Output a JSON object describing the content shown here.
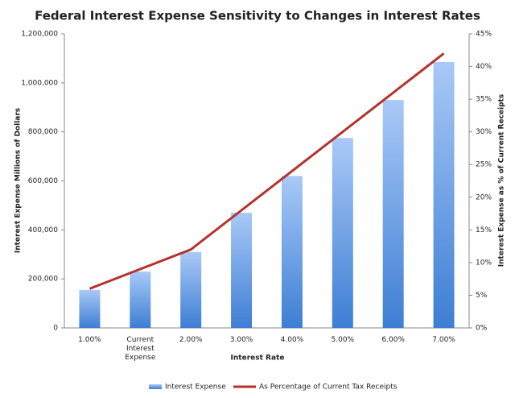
{
  "chart_data": {
    "type": "bar",
    "title": "Federal Interest Expense Sensitivity to Changes in Interest Rates",
    "x_label": "Interest Rate",
    "y_label": "Interest Expense Millions of Dollars",
    "y2_label": "Interest Expense as % of Current Receipts",
    "categories": [
      "1.00%",
      "Current Interest Expense",
      "2.00%",
      "3.00%",
      "4.00%",
      "5.00%",
      "6.00%",
      "7.00%"
    ],
    "series": [
      {
        "name": "Interest Expense",
        "type": "bar",
        "color": "#4f8ee0",
        "values": [
          155000,
          230000,
          310000,
          470000,
          620000,
          775000,
          930000,
          1085000
        ]
      },
      {
        "name": "As Percentage of Current Tax Receipts",
        "type": "line",
        "axis": "y2",
        "color": "#b5322e",
        "values": [
          6,
          9,
          12,
          18,
          24,
          30,
          36,
          42
        ]
      }
    ],
    "ylim": [
      0,
      1200000
    ],
    "yticks": [
      0,
      {
        "value": 200000,
        "label": "200,000"
      },
      {
        "value": 400000,
        "label": "400,000"
      },
      {
        "value": 600000,
        "label": "600,000"
      },
      {
        "value": 800000,
        "label": "800,000"
      },
      {
        "value": 1000000,
        "label": "1,000,000"
      },
      {
        "value": 1200000,
        "label": "1,200,000"
      }
    ],
    "y2lim": [
      0,
      45
    ],
    "y2ticks": [
      {
        "value": 0,
        "label": "0%"
      },
      {
        "value": 5,
        "label": "5%"
      },
      {
        "value": 10,
        "label": "10%"
      },
      {
        "value": 15,
        "label": "15%"
      },
      {
        "value": 20,
        "label": "20%"
      },
      {
        "value": 25,
        "label": "25%"
      },
      {
        "value": 30,
        "label": "30%"
      },
      {
        "value": 35,
        "label": "35%"
      },
      {
        "value": 40,
        "label": "40%"
      },
      {
        "value": 45,
        "label": "45%"
      }
    ],
    "legend": "bottom"
  }
}
